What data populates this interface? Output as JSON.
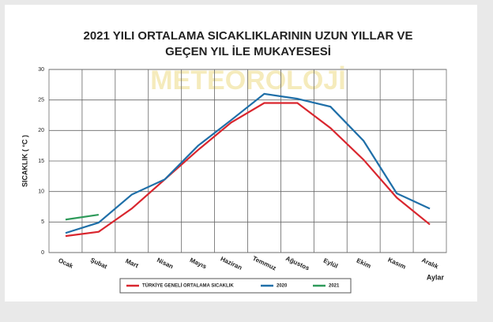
{
  "chart_data": {
    "type": "line",
    "title": [
      "2021 YILI ORTALAMA SICAKLIKLARININ UZUN YILLAR VE",
      "GEÇEN  YIL İLE MUKAYESESİ"
    ],
    "watermark": "METEOROLOJİ",
    "y_label": "SICAKLIK ( °C )",
    "x_label": "Aylar",
    "categories": [
      "Ocak",
      "Şubat",
      "Mart",
      "Nisan",
      "Mayıs",
      "Haziran",
      "Temmuz",
      "Ağustos",
      "Eylül",
      "Ekim",
      "Kasım",
      "Aralık"
    ],
    "series": [
      {
        "name": "TÜRKİYE GENELİ ORTALAMA SICAKLIK",
        "color": "#d9262e",
        "values": [
          2.7,
          3.4,
          7.2,
          12.0,
          16.8,
          21.3,
          24.5,
          24.5,
          20.4,
          15.2,
          9.0,
          4.6
        ]
      },
      {
        "name": "2020",
        "color": "#1f6fa8",
        "values": [
          3.2,
          4.9,
          9.5,
          12.0,
          17.5,
          21.7,
          26.0,
          25.2,
          23.9,
          18.3,
          9.7,
          7.2
        ]
      },
      {
        "name": "2021",
        "color": "#2e9a5a",
        "values": [
          5.4,
          6.2,
          null,
          null,
          null,
          null,
          null,
          null,
          null,
          null,
          null,
          null
        ]
      }
    ],
    "ylim": [
      0,
      30
    ],
    "yticks": [
      0,
      5,
      10,
      15,
      20,
      25,
      30
    ],
    "grid": true
  }
}
